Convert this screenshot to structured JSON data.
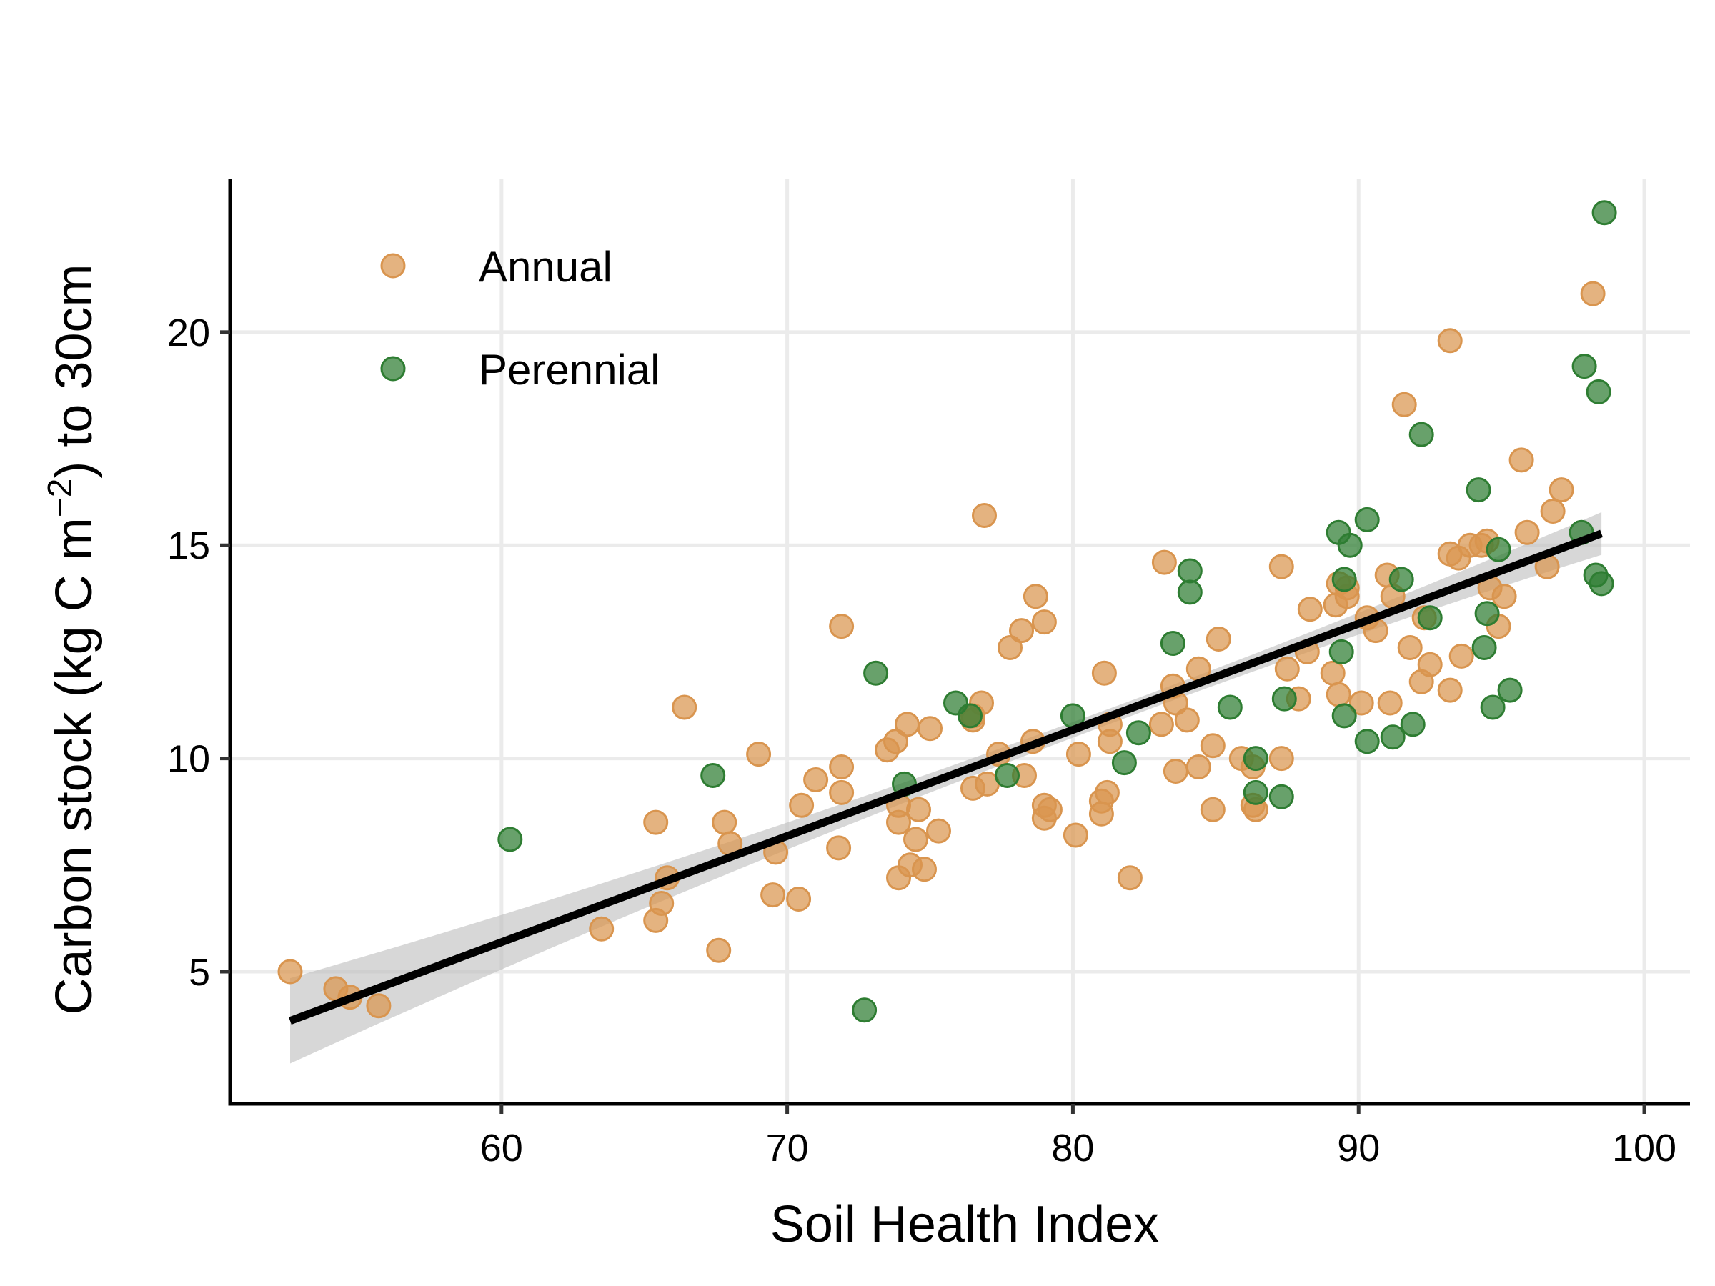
{
  "chart_data": {
    "type": "scatter",
    "xlabel": "Soil Health Index",
    "ylabel_parts": {
      "pre": "Carbon stock (kg C m",
      "sup": "−2",
      "post": ") to 30cm"
    },
    "xlim": [
      50.5,
      101.6
    ],
    "ylim": [
      1.9,
      23.6
    ],
    "xticks": [
      60,
      70,
      80,
      90,
      100
    ],
    "yticks": [
      5,
      10,
      15,
      20
    ],
    "xtick_labels": [
      "60",
      "70",
      "80",
      "90",
      "100"
    ],
    "ytick_labels": [
      "5",
      "10",
      "15",
      "20"
    ],
    "grid": true,
    "legend_position": "top-left",
    "series": [
      {
        "name": "Annual",
        "color": "#D9954F",
        "points": [
          [
            52.6,
            5.0
          ],
          [
            54.2,
            4.6
          ],
          [
            54.7,
            4.4
          ],
          [
            55.7,
            4.2
          ],
          [
            63.5,
            6.0
          ],
          [
            65.4,
            8.5
          ],
          [
            65.4,
            6.2
          ],
          [
            65.6,
            6.6
          ],
          [
            65.8,
            7.2
          ],
          [
            66.4,
            11.2
          ],
          [
            67.6,
            5.5
          ],
          [
            67.8,
            8.5
          ],
          [
            68.0,
            8.0
          ],
          [
            69.0,
            10.1
          ],
          [
            69.5,
            6.8
          ],
          [
            69.6,
            7.8
          ],
          [
            70.4,
            6.7
          ],
          [
            70.5,
            8.9
          ],
          [
            71.0,
            9.5
          ],
          [
            71.8,
            7.9
          ],
          [
            71.9,
            9.2
          ],
          [
            71.9,
            9.8
          ],
          [
            71.9,
            13.1
          ],
          [
            73.5,
            10.2
          ],
          [
            73.8,
            10.4
          ],
          [
            73.9,
            8.9
          ],
          [
            73.9,
            8.5
          ],
          [
            73.9,
            7.2
          ],
          [
            74.2,
            10.8
          ],
          [
            74.3,
            7.5
          ],
          [
            74.5,
            8.1
          ],
          [
            74.6,
            8.8
          ],
          [
            74.8,
            7.4
          ],
          [
            75.0,
            10.7
          ],
          [
            75.3,
            8.3
          ],
          [
            76.5,
            11.0
          ],
          [
            76.5,
            10.9
          ],
          [
            76.5,
            9.3
          ],
          [
            76.8,
            11.3
          ],
          [
            76.9,
            15.7
          ],
          [
            77.0,
            9.4
          ],
          [
            77.4,
            10.1
          ],
          [
            77.8,
            12.6
          ],
          [
            78.2,
            13.0
          ],
          [
            78.3,
            9.6
          ],
          [
            78.6,
            10.4
          ],
          [
            78.7,
            13.8
          ],
          [
            79.0,
            13.2
          ],
          [
            79.0,
            8.9
          ],
          [
            79.0,
            8.6
          ],
          [
            79.2,
            8.8
          ],
          [
            80.1,
            8.2
          ],
          [
            80.2,
            10.1
          ],
          [
            81.0,
            9.0
          ],
          [
            81.0,
            8.7
          ],
          [
            81.1,
            12.0
          ],
          [
            81.2,
            9.2
          ],
          [
            81.3,
            10.8
          ],
          [
            81.3,
            10.4
          ],
          [
            82.0,
            7.2
          ],
          [
            83.1,
            10.8
          ],
          [
            83.2,
            14.6
          ],
          [
            83.5,
            11.7
          ],
          [
            83.6,
            11.3
          ],
          [
            83.6,
            9.7
          ],
          [
            84.0,
            10.9
          ],
          [
            84.4,
            12.1
          ],
          [
            84.4,
            9.8
          ],
          [
            84.9,
            10.3
          ],
          [
            84.9,
            8.8
          ],
          [
            85.1,
            12.8
          ],
          [
            85.9,
            10.0
          ],
          [
            86.3,
            9.8
          ],
          [
            86.3,
            8.9
          ],
          [
            86.4,
            8.8
          ],
          [
            87.3,
            14.5
          ],
          [
            87.3,
            10.0
          ],
          [
            87.5,
            12.1
          ],
          [
            87.9,
            11.4
          ],
          [
            88.2,
            12.5
          ],
          [
            88.3,
            13.5
          ],
          [
            89.1,
            12.0
          ],
          [
            89.2,
            13.6
          ],
          [
            89.3,
            14.1
          ],
          [
            89.3,
            11.5
          ],
          [
            89.6,
            14.0
          ],
          [
            89.6,
            13.8
          ],
          [
            90.1,
            11.3
          ],
          [
            90.3,
            13.3
          ],
          [
            90.6,
            13.0
          ],
          [
            91.0,
            14.3
          ],
          [
            91.1,
            11.3
          ],
          [
            91.2,
            13.8
          ],
          [
            91.6,
            18.3
          ],
          [
            91.8,
            12.6
          ],
          [
            92.2,
            11.8
          ],
          [
            92.3,
            13.3
          ],
          [
            92.5,
            12.2
          ],
          [
            93.2,
            19.8
          ],
          [
            93.2,
            11.6
          ],
          [
            93.2,
            14.8
          ],
          [
            93.5,
            14.7
          ],
          [
            93.6,
            12.4
          ],
          [
            93.9,
            15.0
          ],
          [
            94.3,
            15.0
          ],
          [
            94.5,
            15.1
          ],
          [
            94.6,
            14.0
          ],
          [
            94.9,
            13.1
          ],
          [
            95.1,
            13.8
          ],
          [
            95.7,
            17.0
          ],
          [
            95.9,
            15.3
          ],
          [
            96.6,
            14.5
          ],
          [
            96.8,
            15.8
          ],
          [
            97.1,
            16.3
          ],
          [
            98.2,
            20.9
          ]
        ]
      },
      {
        "name": "Perennial",
        "color": "#2E7D32",
        "points": [
          [
            60.3,
            8.1
          ],
          [
            67.4,
            9.6
          ],
          [
            72.7,
            4.1
          ],
          [
            73.1,
            12.0
          ],
          [
            74.1,
            9.4
          ],
          [
            75.9,
            11.3
          ],
          [
            76.4,
            11.0
          ],
          [
            77.7,
            9.6
          ],
          [
            80.0,
            11.0
          ],
          [
            81.8,
            9.9
          ],
          [
            82.3,
            10.6
          ],
          [
            83.5,
            12.7
          ],
          [
            84.1,
            14.4
          ],
          [
            84.1,
            13.9
          ],
          [
            85.5,
            11.2
          ],
          [
            86.4,
            10.0
          ],
          [
            86.4,
            9.2
          ],
          [
            87.3,
            9.1
          ],
          [
            87.4,
            11.4
          ],
          [
            89.3,
            15.3
          ],
          [
            89.4,
            12.5
          ],
          [
            89.5,
            11.0
          ],
          [
            89.5,
            14.2
          ],
          [
            89.7,
            15.0
          ],
          [
            90.3,
            15.6
          ],
          [
            90.3,
            10.4
          ],
          [
            91.2,
            10.5
          ],
          [
            91.5,
            14.2
          ],
          [
            91.9,
            10.8
          ],
          [
            92.2,
            17.6
          ],
          [
            92.5,
            13.3
          ],
          [
            94.2,
            16.3
          ],
          [
            94.4,
            12.6
          ],
          [
            94.5,
            13.4
          ],
          [
            94.7,
            11.2
          ],
          [
            94.9,
            14.9
          ],
          [
            95.3,
            11.6
          ],
          [
            97.8,
            15.3
          ],
          [
            97.9,
            19.2
          ],
          [
            98.3,
            14.3
          ],
          [
            98.4,
            18.6
          ],
          [
            98.5,
            14.1
          ],
          [
            98.6,
            22.8
          ]
        ]
      }
    ],
    "trendline": {
      "color": "#000000",
      "ribbon_color": "#BDBDBD",
      "x_range": [
        52.6,
        98.5
      ],
      "intercept": -9.25,
      "slope": 0.249,
      "se_ends": [
        1.0,
        0.5
      ],
      "se_min": 0.18,
      "se_center": 82.0
    }
  }
}
